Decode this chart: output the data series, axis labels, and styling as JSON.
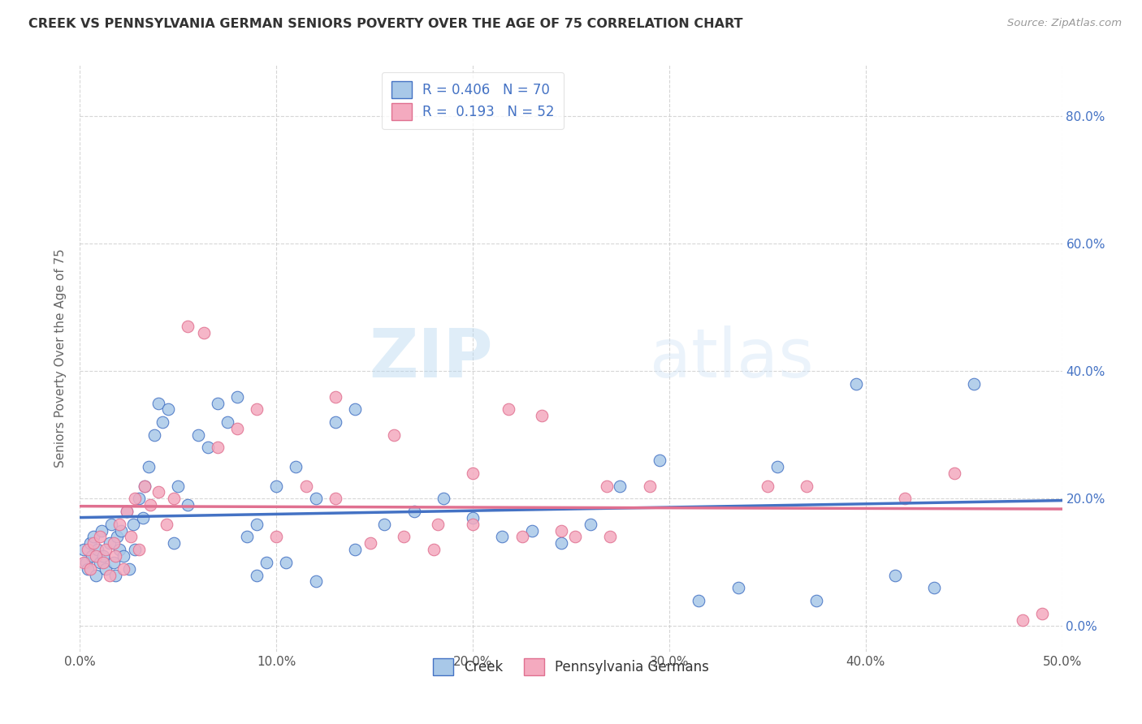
{
  "title": "CREEK VS PENNSYLVANIA GERMAN SENIORS POVERTY OVER THE AGE OF 75 CORRELATION CHART",
  "source": "Source: ZipAtlas.com",
  "ylabel": "Seniors Poverty Over the Age of 75",
  "xlim": [
    0.0,
    0.5
  ],
  "ylim": [
    -0.04,
    0.88
  ],
  "ytick_vals": [
    0.0,
    0.2,
    0.4,
    0.6,
    0.8
  ],
  "ytick_right_labels": [
    "0.0%",
    "20.0%",
    "40.0%",
    "60.0%",
    "80.0%"
  ],
  "xtick_vals": [
    0.0,
    0.1,
    0.2,
    0.3,
    0.4,
    0.5
  ],
  "xtick_labels": [
    "0.0%",
    "10.0%",
    "20.0%",
    "30.0%",
    "40.0%",
    "50.0%"
  ],
  "creek_color": "#a8c8e8",
  "creek_edge_color": "#4472c4",
  "creek_line_color": "#4472c4",
  "pa_color": "#f4aabf",
  "pa_edge_color": "#e07090",
  "pa_line_color": "#e07090",
  "creek_R": 0.406,
  "creek_N": 70,
  "pa_R": 0.193,
  "pa_N": 52,
  "legend_label_creek": "Creek",
  "legend_label_pa": "Pennsylvania Germans",
  "background_color": "#ffffff",
  "grid_color": "#cccccc",
  "watermark": "ZIPatlas",
  "creek_x": [
    0.002,
    0.003,
    0.004,
    0.005,
    0.006,
    0.007,
    0.008,
    0.009,
    0.01,
    0.011,
    0.012,
    0.013,
    0.015,
    0.016,
    0.017,
    0.018,
    0.019,
    0.02,
    0.021,
    0.022,
    0.024,
    0.025,
    0.027,
    0.028,
    0.03,
    0.032,
    0.033,
    0.035,
    0.038,
    0.04,
    0.042,
    0.045,
    0.048,
    0.05,
    0.055,
    0.06,
    0.065,
    0.07,
    0.075,
    0.08,
    0.085,
    0.09,
    0.095,
    0.1,
    0.11,
    0.12,
    0.13,
    0.14,
    0.155,
    0.17,
    0.185,
    0.2,
    0.215,
    0.23,
    0.245,
    0.26,
    0.275,
    0.295,
    0.315,
    0.335,
    0.355,
    0.375,
    0.395,
    0.415,
    0.435,
    0.455,
    0.09,
    0.105,
    0.12,
    0.14
  ],
  "creek_y": [
    0.12,
    0.1,
    0.09,
    0.13,
    0.11,
    0.14,
    0.08,
    0.12,
    0.1,
    0.15,
    0.11,
    0.09,
    0.13,
    0.16,
    0.1,
    0.08,
    0.14,
    0.12,
    0.15,
    0.11,
    0.18,
    0.09,
    0.16,
    0.12,
    0.2,
    0.17,
    0.22,
    0.25,
    0.3,
    0.35,
    0.32,
    0.34,
    0.13,
    0.22,
    0.19,
    0.3,
    0.28,
    0.35,
    0.32,
    0.36,
    0.14,
    0.16,
    0.1,
    0.22,
    0.25,
    0.2,
    0.32,
    0.34,
    0.16,
    0.18,
    0.2,
    0.17,
    0.14,
    0.15,
    0.13,
    0.16,
    0.22,
    0.26,
    0.04,
    0.06,
    0.25,
    0.04,
    0.38,
    0.08,
    0.06,
    0.38,
    0.08,
    0.1,
    0.07,
    0.12
  ],
  "pa_x": [
    0.002,
    0.004,
    0.005,
    0.007,
    0.008,
    0.01,
    0.012,
    0.013,
    0.015,
    0.017,
    0.018,
    0.02,
    0.022,
    0.024,
    0.026,
    0.028,
    0.03,
    0.033,
    0.036,
    0.04,
    0.044,
    0.048,
    0.055,
    0.063,
    0.07,
    0.08,
    0.09,
    0.1,
    0.115,
    0.13,
    0.148,
    0.165,
    0.182,
    0.2,
    0.218,
    0.235,
    0.252,
    0.268,
    0.35,
    0.37,
    0.42,
    0.445,
    0.13,
    0.16,
    0.18,
    0.2,
    0.225,
    0.245,
    0.27,
    0.29,
    0.48,
    0.49
  ],
  "pa_y": [
    0.1,
    0.12,
    0.09,
    0.13,
    0.11,
    0.14,
    0.1,
    0.12,
    0.08,
    0.13,
    0.11,
    0.16,
    0.09,
    0.18,
    0.14,
    0.2,
    0.12,
    0.22,
    0.19,
    0.21,
    0.16,
    0.2,
    0.47,
    0.46,
    0.28,
    0.31,
    0.34,
    0.14,
    0.22,
    0.2,
    0.13,
    0.14,
    0.16,
    0.24,
    0.34,
    0.33,
    0.14,
    0.22,
    0.22,
    0.22,
    0.2,
    0.24,
    0.36,
    0.3,
    0.12,
    0.16,
    0.14,
    0.15,
    0.14,
    0.22,
    0.01,
    0.02
  ]
}
